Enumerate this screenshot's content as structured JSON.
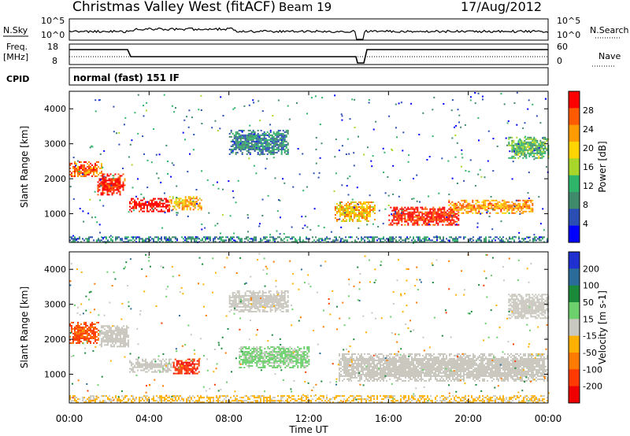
{
  "header": {
    "title": "Christmas Valley West (fitACF)",
    "beam": "Beam 19",
    "date": "17/Aug/2012"
  },
  "noise_panel": {
    "left_label": "N.Sky",
    "right_label": "N.Search",
    "left_ticks": [
      "10^5",
      "10^0"
    ],
    "right_ticks": [
      "10^5",
      "10^0"
    ]
  },
  "freq_panel": {
    "left_label_1": "Freq.",
    "left_label_2": "[MHz]",
    "right_label": "Nave",
    "left_ticks": [
      "18",
      "8"
    ],
    "right_ticks": [
      "60",
      "0"
    ]
  },
  "cpid": {
    "label": "CPID",
    "value": "normal (fast) 151 IF"
  },
  "colors": {
    "power_scale": [
      "#0000ff",
      "#2b4eb5",
      "#3f8a6a",
      "#2fb56a",
      "#a8d62a",
      "#ffd400",
      "#ff9a00",
      "#ff5a00",
      "#ff0000"
    ],
    "velocity_scale": [
      "#1f2fd0",
      "#2a6b9a",
      "#1a8a3a",
      "#6cd06c",
      "#c8c8c0",
      "#ffb000",
      "#ff7a00",
      "#ff3a00",
      "#ee0000"
    ],
    "scatter_gray": "#c8c6bc"
  },
  "chart_data": [
    {
      "type": "heatmap",
      "name": "power",
      "xlabel": "",
      "ylabel": "Slant Range [km]",
      "xlim": [
        "00:00",
        "24:00"
      ],
      "ylim": [
        180,
        4500
      ],
      "y_ticks": [
        "4000",
        "3000",
        "2000",
        "1000"
      ],
      "x_ticks": [
        "00:00",
        "04:00",
        "08:00",
        "12:00",
        "16:00",
        "20:00",
        "00:00"
      ],
      "colorbar": {
        "label": "Power [dB]",
        "ticks": [
          "28",
          "24",
          "20",
          "16",
          "12",
          "8",
          "4"
        ],
        "range": [
          0,
          30
        ]
      },
      "regions": [
        {
          "t0": 0.0,
          "t1": 1.6,
          "r0": 2050,
          "r1": 2500,
          "value": 24
        },
        {
          "t0": 1.4,
          "t1": 2.8,
          "r0": 1550,
          "r1": 2150,
          "value": 28
        },
        {
          "t0": 3.0,
          "t1": 5.0,
          "r0": 1050,
          "r1": 1450,
          "value": 30
        },
        {
          "t0": 5.0,
          "t1": 6.6,
          "r0": 1100,
          "r1": 1500,
          "value": 20
        },
        {
          "t0": 13.3,
          "t1": 15.3,
          "r0": 800,
          "r1": 1350,
          "value": 20
        },
        {
          "t0": 16.0,
          "t1": 19.5,
          "r0": 700,
          "r1": 1200,
          "value": 28
        },
        {
          "t0": 19.0,
          "t1": 23.2,
          "r0": 1000,
          "r1": 1400,
          "value": 22
        },
        {
          "t0": 8.0,
          "t1": 11.0,
          "r0": 2700,
          "r1": 3400,
          "value": 8
        },
        {
          "t0": 22.0,
          "t1": 24.0,
          "r0": 2600,
          "r1": 3200,
          "value": 12
        },
        {
          "t0": 0.0,
          "t1": 24.0,
          "r0": 180,
          "r1": 350,
          "value": 8
        }
      ]
    },
    {
      "type": "heatmap",
      "name": "velocity",
      "xlabel": "Time UT",
      "ylabel": "Slant Range [km]",
      "xlim": [
        "00:00",
        "24:00"
      ],
      "ylim": [
        180,
        4500
      ],
      "y_ticks": [
        "4000",
        "3000",
        "2000",
        "1000"
      ],
      "x_ticks": [
        "00:00",
        "04:00",
        "08:00",
        "12:00",
        "16:00",
        "20:00",
        "00:00"
      ],
      "colorbar": {
        "label": "Velocity [m s-1]",
        "ticks": [
          "200",
          "100",
          "50",
          "15",
          "-15",
          "-50",
          "-100",
          "-200"
        ],
        "range": [
          -250,
          250
        ]
      },
      "regions": [
        {
          "t0": 0.0,
          "t1": 1.5,
          "r0": 1900,
          "r1": 2500,
          "value": -150
        },
        {
          "t0": 1.5,
          "t1": 3.0,
          "r0": 1800,
          "r1": 2400,
          "value": 0
        },
        {
          "t0": 3.0,
          "t1": 5.2,
          "r0": 1050,
          "r1": 1450,
          "value": 0
        },
        {
          "t0": 5.2,
          "t1": 6.5,
          "r0": 1000,
          "r1": 1450,
          "value": -180
        },
        {
          "t0": 8.5,
          "t1": 12.0,
          "r0": 1200,
          "r1": 1800,
          "value": 40
        },
        {
          "t0": 13.5,
          "t1": 24.0,
          "r0": 800,
          "r1": 1600,
          "value": 0
        },
        {
          "t0": 8.0,
          "t1": 11.0,
          "r0": 2800,
          "r1": 3400,
          "value": 0
        },
        {
          "t0": 22.0,
          "t1": 24.0,
          "r0": 2600,
          "r1": 3300,
          "value": 0
        },
        {
          "t0": 0.0,
          "t1": 24.0,
          "r0": 180,
          "r1": 400,
          "value": -40
        }
      ]
    }
  ]
}
